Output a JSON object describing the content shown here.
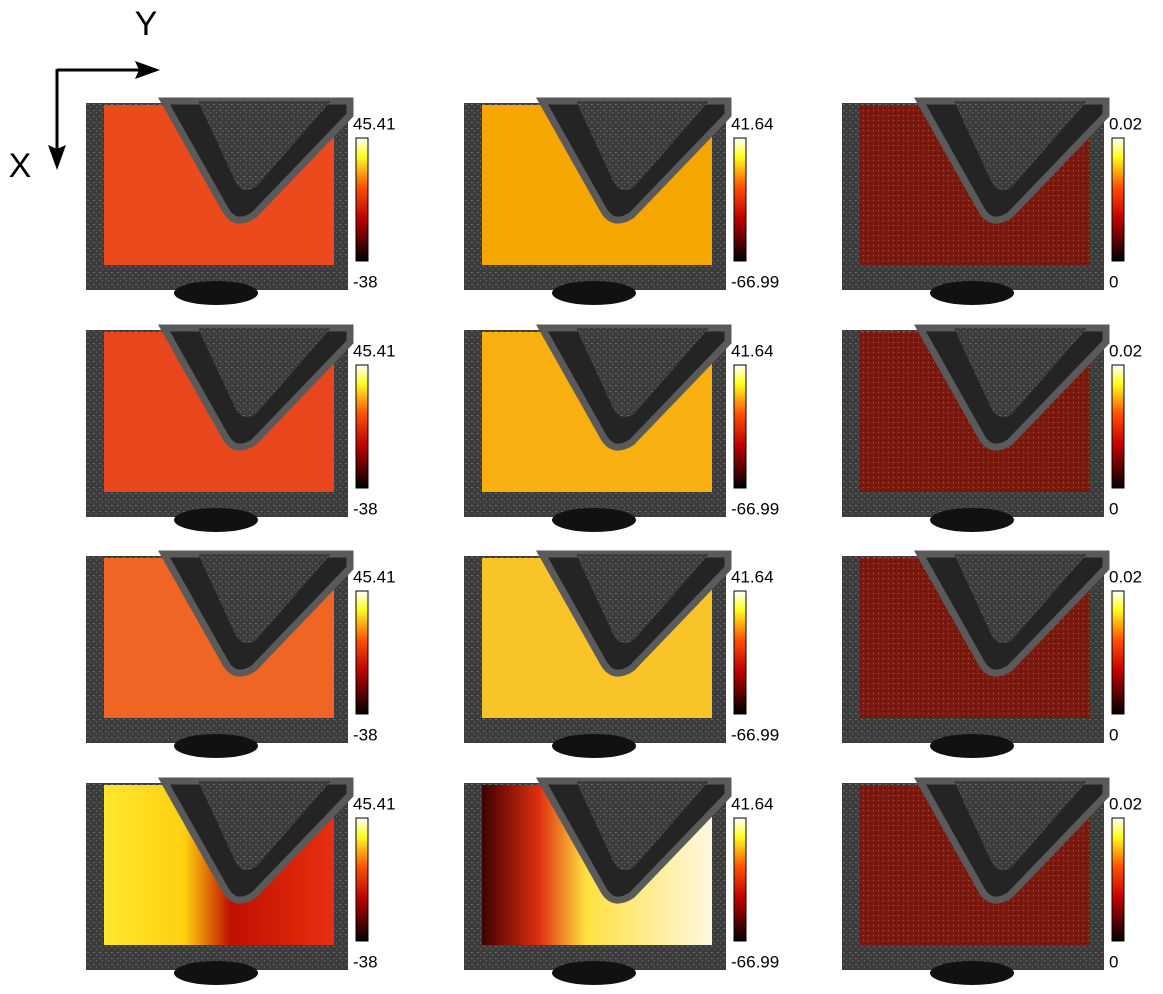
{
  "axes": {
    "y": "Y",
    "x": "X"
  },
  "colorbars": [
    {
      "max": 45.41,
      "min": -38
    },
    {
      "max": 41.64,
      "min": -66.99
    },
    {
      "max": 0.02,
      "min": 0
    }
  ]
}
